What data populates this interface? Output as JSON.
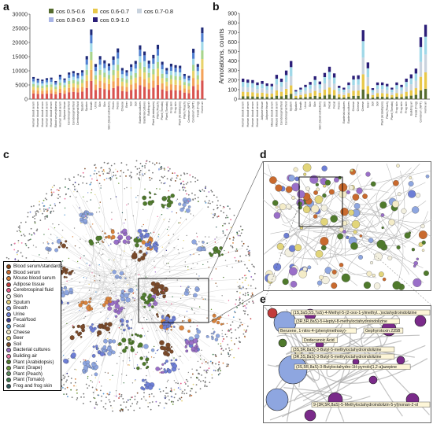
{
  "panels": {
    "a": "a",
    "b": "b",
    "c": "c",
    "d": "d",
    "e": "e"
  },
  "legend_ab": [
    {
      "label": "cos 0.5-0.6",
      "color": "#556b2f"
    },
    {
      "label": "cos 0.6-0.7",
      "color": "#e8c84a"
    },
    {
      "label": "cos 0.7-0.8",
      "color": "#c9d3de"
    },
    {
      "label": "cos 0.8-0.9",
      "color": "#a8b4e6"
    },
    {
      "label": "cos 0.9-1.0",
      "color": "#2b1e78"
    }
  ],
  "chart_data": [
    {
      "type": "bar",
      "stacked": true,
      "ylim": [
        0,
        30000
      ],
      "yticks": [
        0,
        5000,
        10000,
        15000,
        20000,
        25000,
        30000
      ],
      "colors": [
        "#d9534f",
        "#f4a259",
        "#e8d26a",
        "#a7d48b",
        "#9fd8e8",
        "#4f7fd1",
        "#1f2a78"
      ],
      "categories": [
        "Human blood serum",
        "Human blood serum",
        "Human blood serum",
        "Human blood serum",
        "Human blood serum",
        "Blood serum/plasma",
        "Human blood serum",
        "Adipose tissue",
        "Cerebrospinal fluid",
        "Cerebrospinal fluid",
        "Cerebrospinal fluid",
        "Sputum",
        "Sputum",
        "Breath",
        "Urine",
        "Skin",
        "Skin",
        "Skin (blood extraction)",
        "Feces",
        "Feces",
        "Cheese",
        "Beer",
        "Soil",
        "Soil",
        "Bacterial cultures",
        "Bacterial cultures",
        "Building air",
        "Plant (Arabidopsis)",
        "Plant (Peach)",
        "Plant (Tomato)",
        "Plant (Tomato)",
        "Frog skin",
        "Frog skin",
        "Plant (Arabidopsis)",
        "Plant (Peach)",
        "Cerebrum (NPT)",
        "Cerebrum (NPT)",
        "Fecal (Frog)",
        "Home air"
      ],
      "values": [
        7800,
        7200,
        6900,
        7400,
        7600,
        6400,
        8600,
        7300,
        9400,
        9900,
        9200,
        10200,
        15200,
        24600,
        12400,
        15200,
        13700,
        12600,
        15100,
        17900,
        11000,
        10200,
        12300,
        13500,
        19000,
        16800,
        13600,
        15600,
        19200,
        13200,
        11000,
        12500,
        12000,
        11800,
        8900,
        8200,
        17800,
        12400,
        25300
      ]
    },
    {
      "type": "bar",
      "stacked": true,
      "ylabel": "Annotations, counts",
      "ylim": [
        0,
        900
      ],
      "yticks": [
        0,
        100,
        200,
        300,
        400,
        500,
        600,
        700,
        800,
        900
      ],
      "colors": [
        "#556b2f",
        "#e8c84a",
        "#c9d3de",
        "#9fd8e8",
        "#2b1e78"
      ],
      "categories": [
        "Human blood serum",
        "Human blood serum",
        "Human blood serum",
        "Human blood serum",
        "Adipose tissue",
        "Adipose tissue",
        "Mouse blood serum",
        "Mouse blood serum",
        "Cerebrospinal fluid",
        "Cerebrospinal fluid",
        "Sputum",
        "Sputum",
        "Breath",
        "Urine",
        "Skin",
        "Skin",
        "Skin (blood extraction)",
        "Skin",
        "Fecal",
        "Fecal",
        "Feces",
        "Bacterial cultures",
        "Bacterial cultures",
        "Cheese",
        "Cheese",
        "Cheese",
        "Beer",
        "Soil",
        "Soil",
        "Plant (Arabidopsis)",
        "Plant (Peach)",
        "Plant (Tomato)",
        "Frog skin",
        "Frog skin",
        "Frog skin",
        "Building air",
        "Fecal (Frog)",
        "Cerebrum (NPT)",
        "Home air"
      ],
      "values": [
        215,
        205,
        200,
        175,
        190,
        165,
        160,
        255,
        215,
        300,
        400,
        95,
        120,
        150,
        180,
        240,
        185,
        275,
        340,
        270,
        140,
        120,
        175,
        245,
        250,
        725,
        385,
        115,
        175,
        175,
        160,
        120,
        175,
        150,
        215,
        260,
        320,
        650,
        780
      ]
    }
  ],
  "network_legend": [
    {
      "label": "Blood serum/standards",
      "color": "#8b4513"
    },
    {
      "label": "Blood serum",
      "color": "#c96a2e"
    },
    {
      "label": "Mouse blood serum",
      "color": "#d9823b"
    },
    {
      "label": "Adipose tissue",
      "color": "#c23b3b"
    },
    {
      "label": "Cerebrospinal fluid",
      "color": "#e85c8a"
    },
    {
      "label": "Skin",
      "color": "#f3f0e0"
    },
    {
      "label": "Sputum",
      "color": "#e7d27a"
    },
    {
      "label": "Breath",
      "color": "#8ea6e0"
    },
    {
      "label": "Urine",
      "color": "#6e7fd6"
    },
    {
      "label": "Fecal/food",
      "color": "#3b3a8c"
    },
    {
      "label": "Fecal",
      "color": "#5a9ad0"
    },
    {
      "label": "Cheese",
      "color": "#f4ecc8"
    },
    {
      "label": "Beer",
      "color": "#e2d57a"
    },
    {
      "label": "Soil",
      "color": "#7a4a2a"
    },
    {
      "label": "Bacterial cultures",
      "color": "#9a6fc8"
    },
    {
      "label": "Building air",
      "color": "#f07aa8"
    },
    {
      "label": "Plant (Arabidopsis)",
      "color": "#4f7a2c"
    },
    {
      "label": "Plant (Grape)",
      "color": "#6e9a3a"
    },
    {
      "label": "Plant (Peach)",
      "color": "#5c8c5c"
    },
    {
      "label": "Plant (Tomato)",
      "color": "#3c7a4a"
    },
    {
      "label": "Frog and frog skin",
      "color": "#2e5a5a"
    }
  ],
  "compound_labels": [
    "(1S,3aS,5S,7aS)-4-Methyl-5-(2-oxo-1-ylmethyl...)octahydroindolizine",
    "(3R,5R,8aS)-5-Heptyl-8-methyloctahydroindolizine",
    "Benzene, 1-nitro-4-(phenylmethoxy)-",
    "Gephyrotoxin 235B",
    "Dodecanoic Acid",
    "(3S,5R,8aS)-3-Butyl-5-methyloctahydroindolizine",
    "(3R,5S,8aS)-3-Butyl-5-methyloctahydroindolizine",
    "(3S,5R,8aS)-3-Butyloctahydro-1H-pyrrolo[1,2-a]azepine",
    "9-(3R,5R,8aS)-5-Methyloctahydroindolizin-5-yl)nonan-2-ol"
  ]
}
